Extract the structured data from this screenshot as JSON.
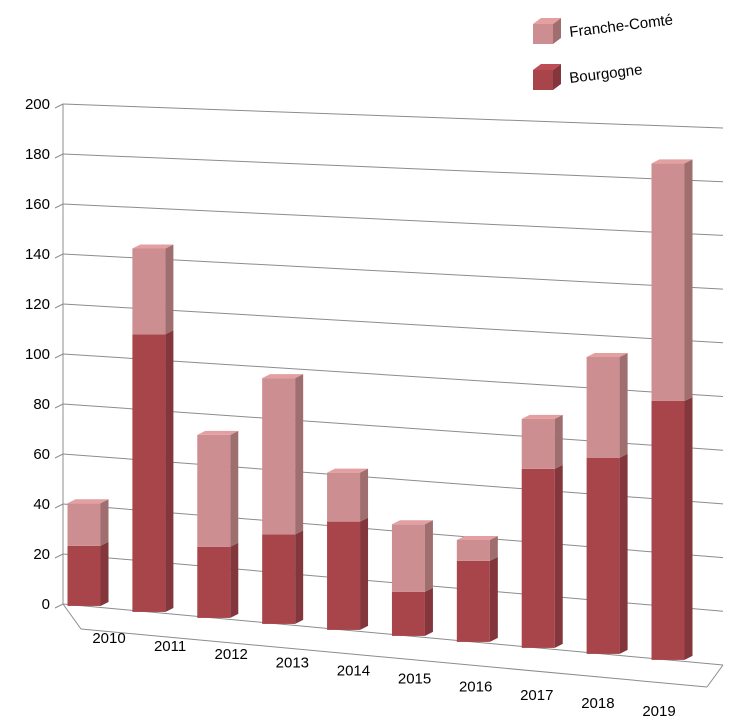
{
  "chart_data": {
    "type": "bar",
    "stacked": true,
    "view": "3d",
    "categories": [
      "2010",
      "2011",
      "2012",
      "2013",
      "2014",
      "2015",
      "2016",
      "2017",
      "2018",
      "2019"
    ],
    "series": [
      {
        "name": "Bourgogne",
        "values": [
          24,
          110,
          28,
          35,
          42,
          17,
          31,
          68,
          74,
          97
        ],
        "color": "#a8454b"
      },
      {
        "name": "Franche-Comté",
        "values": [
          17,
          34,
          44,
          61,
          19,
          26,
          8,
          19,
          38,
          89
        ],
        "color": "#cc8e90"
      }
    ],
    "yticks": [
      0,
      20,
      40,
      60,
      80,
      100,
      120,
      140,
      160,
      180,
      200
    ],
    "ylim": [
      0,
      200
    ],
    "grid": true,
    "legend_position": "top-right",
    "title": "",
    "xlabel": "",
    "ylabel": ""
  }
}
